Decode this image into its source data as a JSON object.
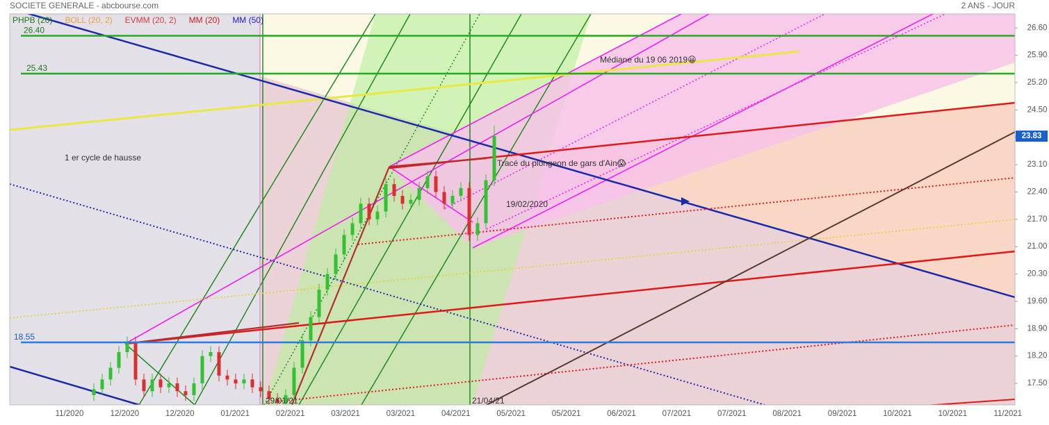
{
  "chart_data": {
    "type": "candlestick",
    "title": "SOCIETE GENERALE - abcbourse.com",
    "subtitle": "2 ANS - JOUR",
    "legend": [
      {
        "name": "PHPB (20)",
        "color": "#1a7a1a"
      },
      {
        "name": "BOLL (20, 2)",
        "color": "#e8a040"
      },
      {
        "name": "EVMM (20, 2)",
        "color": "#d04040"
      },
      {
        "name": "MM (20)",
        "color": "#cc2020"
      },
      {
        "name": "MM (50)",
        "color": "#2020cc"
      }
    ],
    "categories": [
      "11/2020",
      "12/2020",
      "12/2020",
      "01/2021",
      "02/2021",
      "03/2021",
      "03/2021",
      "04/2021",
      "05/2021",
      "05/2021",
      "06/2021",
      "07/2021",
      "07/2021",
      "08/2021",
      "09/2021",
      "10/2021",
      "10/2021",
      "11/2021"
    ],
    "ylim": [
      16.95,
      26.96
    ],
    "yticks": [
      {
        "value": 17.5,
        "label": "17.50"
      },
      {
        "value": 18.2,
        "label": "18.20"
      },
      {
        "value": 18.9,
        "label": "18.90"
      },
      {
        "value": 19.6,
        "label": "19.60"
      },
      {
        "value": 20.3,
        "label": "20.30"
      },
      {
        "value": 21,
        "label": "21.00"
      },
      {
        "value": 21.7,
        "label": "21.70"
      },
      {
        "value": 22.4,
        "label": "22.40"
      },
      {
        "value": 23.1,
        "label": "23.10"
      },
      {
        "value": 23.8,
        "label": "23.80"
      },
      {
        "value": 24.5,
        "label": "24.50"
      },
      {
        "value": 25.2,
        "label": "25.20"
      },
      {
        "value": 25.9,
        "label": "25.90"
      },
      {
        "value": 26.6,
        "label": "26.60"
      }
    ],
    "open": [
      17.2,
      17.35,
      17.6,
      17.9,
      18.3,
      18.55,
      17.6,
      17.3,
      17.6,
      17.4,
      17.5,
      17.3,
      17.2,
      17.5,
      18.2,
      18.3,
      17.7,
      17.6,
      17.5,
      17.6,
      17.4,
      17.3,
      17.1,
      17.0,
      17.2,
      17.9,
      18.6,
      19.2,
      19.9,
      20.3,
      20.8,
      21.3,
      21.6,
      22.1,
      21.7,
      21.9,
      22.6,
      22.3,
      22.1,
      22.2,
      22.5,
      22.8,
      22.4,
      22.1,
      22.3,
      22.5,
      21.3,
      21.6,
      22.7
    ],
    "high": [
      17.5,
      17.75,
      18.05,
      18.45,
      18.7,
      18.7,
      17.75,
      17.75,
      17.75,
      17.65,
      17.65,
      17.45,
      17.65,
      18.35,
      18.45,
      18.45,
      17.85,
      17.75,
      17.75,
      17.75,
      17.55,
      17.45,
      17.25,
      17.35,
      18.05,
      18.75,
      19.35,
      20.05,
      20.45,
      20.95,
      21.45,
      21.75,
      22.25,
      22.25,
      22.05,
      22.75,
      22.75,
      22.45,
      22.35,
      22.65,
      22.95,
      22.95,
      22.55,
      22.45,
      22.65,
      22.65,
      21.75,
      22.85,
      24.1
    ],
    "low": [
      17.05,
      17.2,
      17.45,
      17.75,
      18.15,
      17.45,
      17.15,
      17.15,
      17.25,
      17.25,
      17.15,
      17.05,
      17.05,
      17.35,
      18.05,
      17.55,
      17.45,
      17.35,
      17.35,
      17.25,
      17.15,
      16.95,
      16.85,
      16.85,
      17.05,
      17.75,
      18.45,
      19.05,
      19.75,
      20.15,
      20.65,
      21.15,
      21.45,
      21.55,
      21.55,
      21.75,
      22.15,
      21.95,
      21.95,
      22.05,
      22.35,
      22.25,
      21.95,
      21.95,
      22.15,
      21.15,
      21.15,
      21.45,
      22.55
    ],
    "close": [
      17.35,
      17.6,
      17.9,
      18.3,
      18.55,
      17.6,
      17.3,
      17.6,
      17.4,
      17.5,
      17.3,
      17.2,
      17.5,
      18.2,
      18.3,
      17.7,
      17.6,
      17.5,
      17.6,
      17.4,
      17.3,
      17.1,
      17.0,
      17.2,
      17.9,
      18.6,
      19.2,
      19.9,
      20.3,
      20.8,
      21.3,
      21.6,
      22.1,
      21.7,
      21.9,
      22.6,
      22.3,
      22.1,
      22.2,
      22.5,
      22.8,
      22.4,
      22.1,
      22.3,
      22.5,
      21.3,
      21.6,
      22.7,
      23.83
    ],
    "up_color": "#33c233",
    "down_color": "#d83030",
    "last_price": 23.83,
    "levels": [
      {
        "value": 26.4,
        "label": "26.40",
        "color": "#22aa22"
      },
      {
        "value": 25.43,
        "label": "25.43",
        "color": "#22aa22"
      },
      {
        "value": 18.55,
        "label": "18.55",
        "color": "#2a7ae0"
      }
    ],
    "annotations": [
      "1 er cycle de hausse",
      "Tracé du plongeon de gars d'Ain😱",
      "Médiane du 19 06 2019😀",
      "19/02/2020",
      "29/01/21",
      "21/04/21"
    ]
  }
}
